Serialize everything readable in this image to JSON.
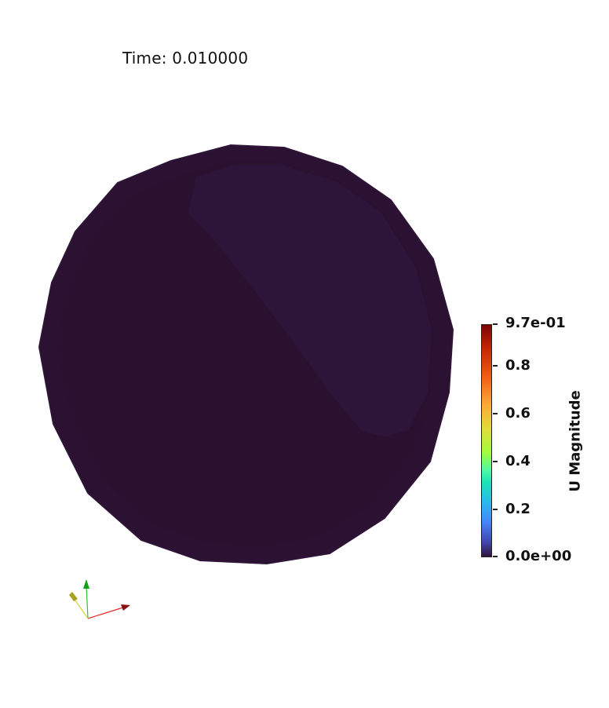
{
  "time_label": "Time: 0.010000",
  "colorbar": {
    "title": "U Magnitude",
    "colormap": "turbo",
    "range": [
      0.0,
      0.97
    ],
    "ticks": [
      "9.7e-01",
      "0.8",
      "0.6",
      "0.4",
      "0.2",
      "0.0e+00"
    ],
    "tick_values": [
      0.97,
      0.8,
      0.6,
      0.4,
      0.2,
      0.0
    ]
  },
  "colors": {
    "field_main": "#2a1130",
    "field_light": "#2e1538",
    "rim": "#2c1333"
  },
  "axes_icons": [
    "x-axis-arrow-icon",
    "y-axis-arrow-icon",
    "z-axis-arrow-icon"
  ]
}
